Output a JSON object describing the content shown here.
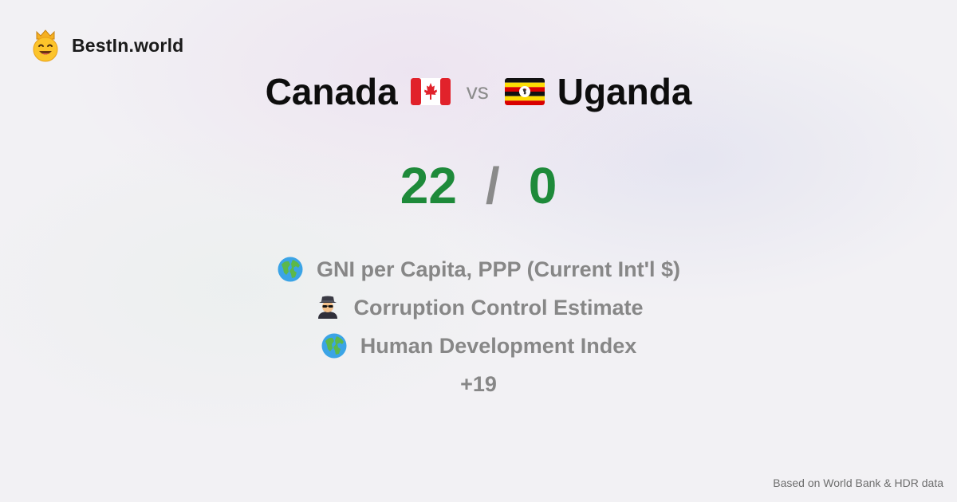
{
  "brand": {
    "name": "BestIn.world",
    "logo_icon": "crowned-smiley-icon"
  },
  "comparison": {
    "left": {
      "country": "Canada",
      "flag_icon": "canada-flag-icon",
      "score": "22"
    },
    "vs_label": "vs",
    "right": {
      "country": "Uganda",
      "flag_icon": "uganda-flag-icon",
      "score": "0"
    },
    "separator": "/"
  },
  "metrics": [
    {
      "icon": "globe-icon",
      "label": "GNI per Capita, PPP (Current Int'l $)"
    },
    {
      "icon": "spy-icon",
      "label": "Corruption Control Estimate"
    },
    {
      "icon": "globe-icon",
      "label": "Human Development Index"
    }
  ],
  "more_label": "+19",
  "footnote": "Based on World Bank & HDR data",
  "colors": {
    "score": "#1e8a3a",
    "muted": "#878787",
    "title": "#0d0d0d"
  }
}
